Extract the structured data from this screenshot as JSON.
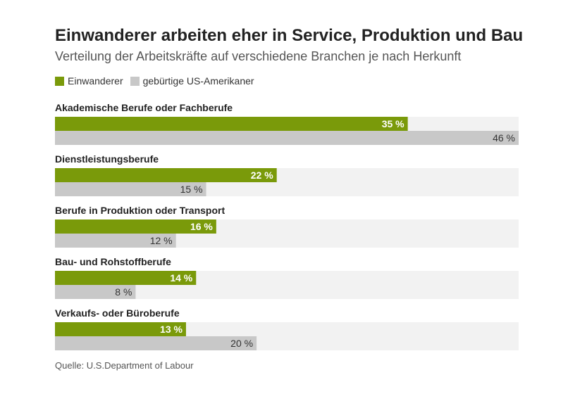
{
  "title": "Einwanderer arbeiten eher in Service, Produktion und Bau",
  "subtitle": "Verteilung der Arbeitskräfte auf verschiedene Branchen je nach Herkunft",
  "source": "Quelle: U.S.Department of Labour",
  "colors": {
    "immigrants": "#7a9a0a",
    "natives": "#c8c8c8",
    "track": "#f2f2f2",
    "label_on_green": "#ffffff",
    "label_on_gray": "#333333"
  },
  "percent_symbol": "%",
  "chart_data": {
    "type": "bar",
    "orientation": "horizontal",
    "categories": [
      "Akademische Berufe oder Fachberufe",
      "Dienstleistungsberufe",
      "Berufe in Produktion oder Transport",
      "Bau- und Rohstoffberufe",
      "Verkaufs- oder Büroberufe"
    ],
    "series": [
      {
        "name": "Einwanderer",
        "values": [
          35,
          22,
          16,
          14,
          13
        ]
      },
      {
        "name": "gebürtige US-Amerikaner",
        "values": [
          46,
          15,
          12,
          8,
          20
        ]
      }
    ],
    "xlim": [
      0,
      46
    ],
    "legend": "top-left",
    "grid": false
  }
}
